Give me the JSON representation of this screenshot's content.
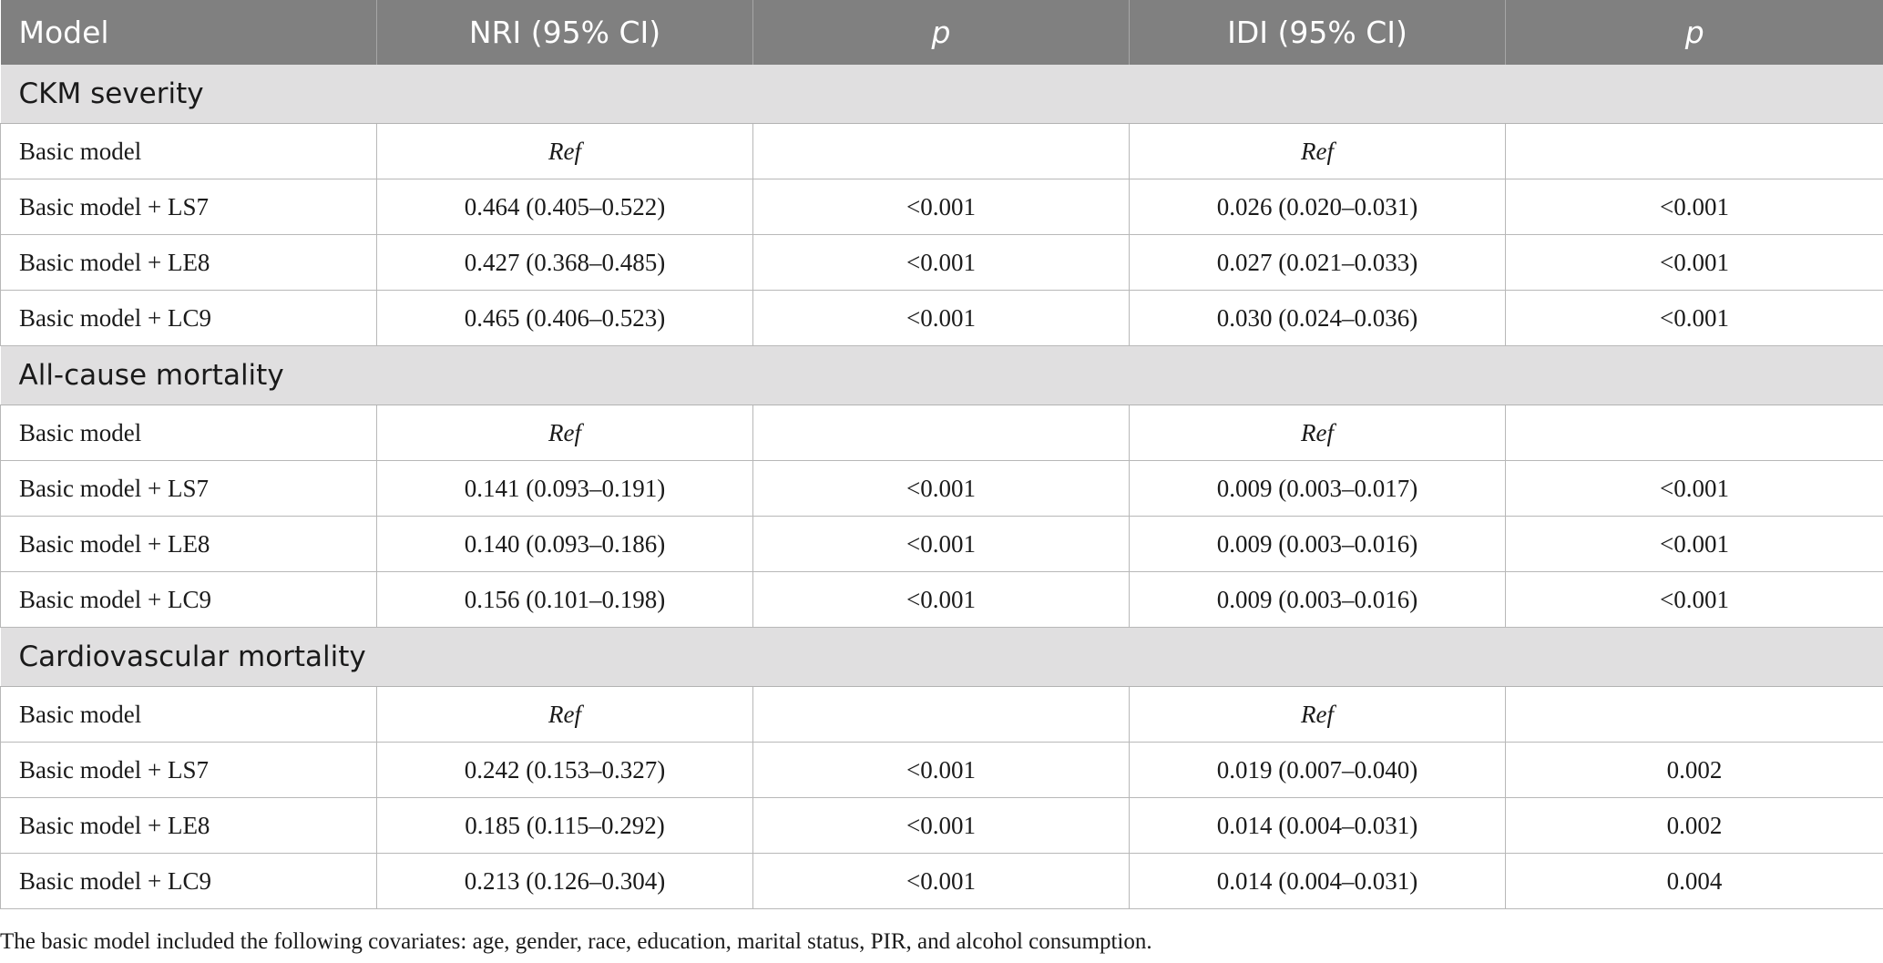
{
  "header": [
    "Model",
    "NRI (95% CI)",
    "p",
    "IDI (95% CI)",
    "p"
  ],
  "sections": [
    {
      "title": "CKM severity",
      "rows": [
        {
          "model": "Basic model",
          "nri": "Ref",
          "nri_p": "",
          "idi": "Ref",
          "idi_p": ""
        },
        {
          "model": "Basic model + LS7",
          "nri": "0.464 (0.405–0.522)",
          "nri_p": "<0.001",
          "idi": "0.026 (0.020–0.031)",
          "idi_p": "<0.001"
        },
        {
          "model": "Basic model + LE8",
          "nri": "0.427 (0.368–0.485)",
          "nri_p": "<0.001",
          "idi": "0.027 (0.021–0.033)",
          "idi_p": "<0.001"
        },
        {
          "model": "Basic model + LC9",
          "nri": "0.465 (0.406–0.523)",
          "nri_p": "<0.001",
          "idi": "0.030 (0.024–0.036)",
          "idi_p": "<0.001"
        }
      ]
    },
    {
      "title": "All-cause mortality",
      "rows": [
        {
          "model": "Basic model",
          "nri": "Ref",
          "nri_p": "",
          "idi": "Ref",
          "idi_p": ""
        },
        {
          "model": "Basic model + LS7",
          "nri": "0.141 (0.093–0.191)",
          "nri_p": "<0.001",
          "idi": "0.009 (0.003–0.017)",
          "idi_p": "<0.001"
        },
        {
          "model": "Basic model + LE8",
          "nri": "0.140 (0.093–0.186)",
          "nri_p": "<0.001",
          "idi": "0.009 (0.003–0.016)",
          "idi_p": "<0.001"
        },
        {
          "model": "Basic model + LC9",
          "nri": "0.156 (0.101–0.198)",
          "nri_p": "<0.001",
          "idi": "0.009 (0.003–0.016)",
          "idi_p": "<0.001"
        }
      ]
    },
    {
      "title": "Cardiovascular mortality",
      "rows": [
        {
          "model": "Basic model",
          "nri": "Ref",
          "nri_p": "",
          "idi": "Ref",
          "idi_p": ""
        },
        {
          "model": "Basic model + LS7",
          "nri": "0.242 (0.153–0.327)",
          "nri_p": "<0.001",
          "idi": "0.019 (0.007–0.040)",
          "idi_p": "0.002"
        },
        {
          "model": "Basic model + LE8",
          "nri": "0.185 (0.115–0.292)",
          "nri_p": "<0.001",
          "idi": "0.014 (0.004–0.031)",
          "idi_p": "0.002"
        },
        {
          "model": "Basic model + LC9",
          "nri": "0.213 (0.126–0.304)",
          "nri_p": "<0.001",
          "idi": "0.014 (0.004–0.031)",
          "idi_p": "0.004"
        }
      ]
    }
  ],
  "footnote": "The basic model included the following covariates: age, gender, race, education, marital status, PIR, and alcohol consumption."
}
